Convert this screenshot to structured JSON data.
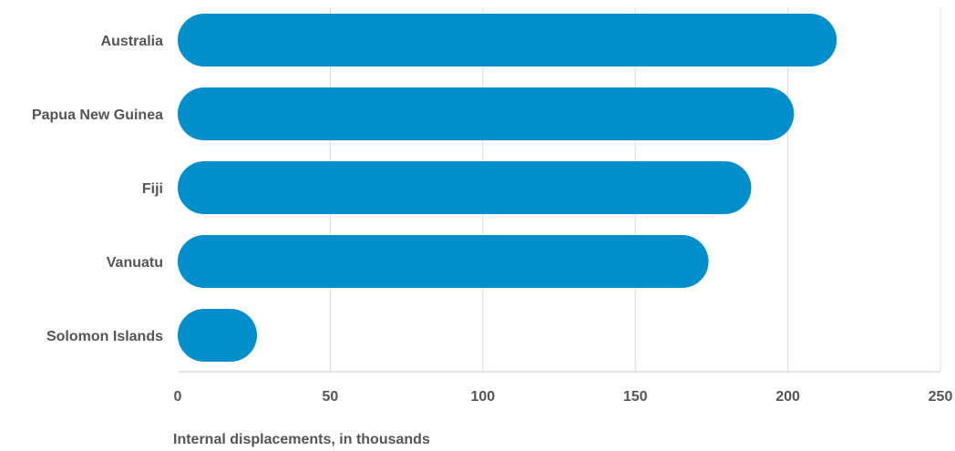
{
  "chart_data": {
    "type": "bar",
    "orientation": "horizontal",
    "categories": [
      "Australia",
      "Papua New Guinea",
      "Fiji",
      "Vanuatu",
      "Solomon Islands"
    ],
    "values": [
      216,
      202,
      188,
      174,
      26
    ],
    "xlabel": "Internal displacements, in thousands",
    "ylabel": "",
    "xlim": [
      0,
      250
    ],
    "xticks": [
      "0",
      "50",
      "100",
      "150",
      "200",
      "250"
    ],
    "grid": true,
    "bar_color": "#038fcb"
  }
}
